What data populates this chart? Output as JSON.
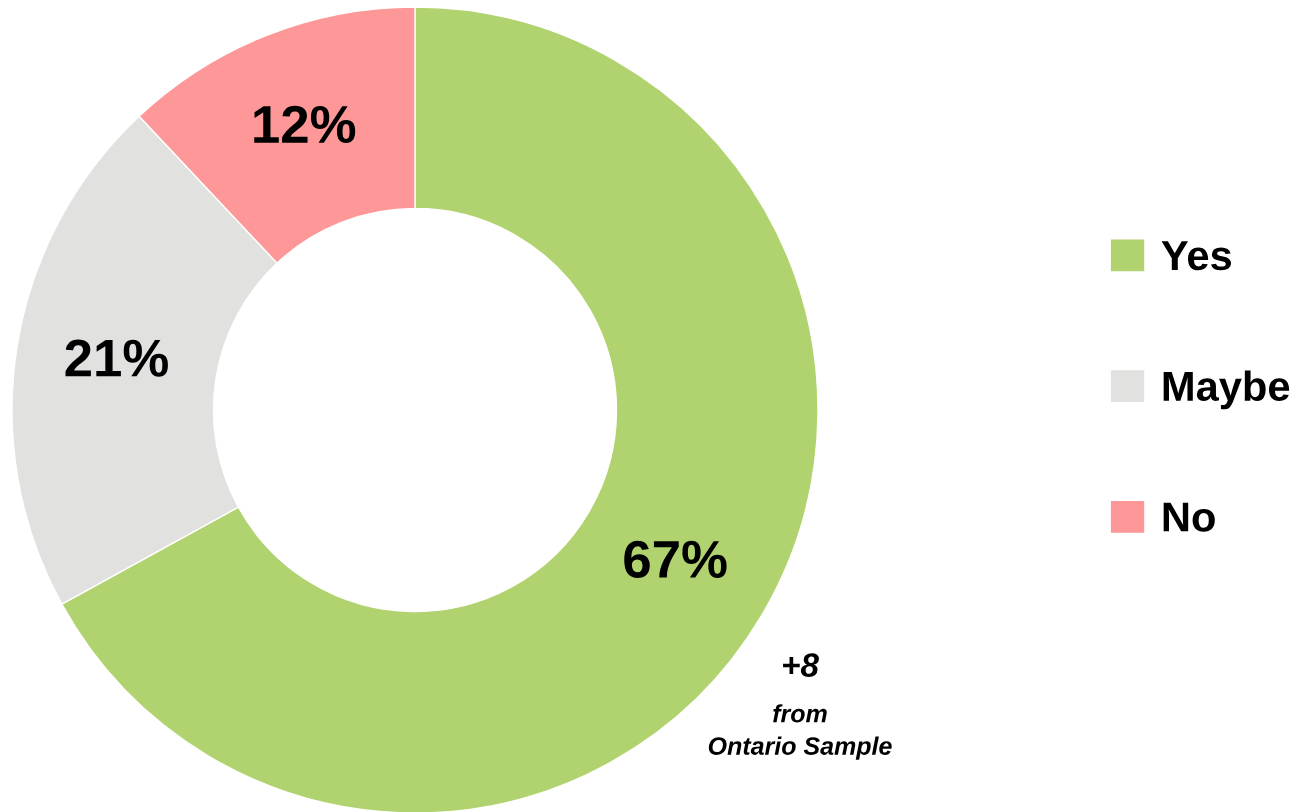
{
  "chart_data": {
    "type": "donut",
    "categories": [
      "Yes",
      "Maybe",
      "No"
    ],
    "values": [
      67,
      21,
      12
    ],
    "colors": [
      "#b1d36f",
      "#e1e2df",
      "#fe9797"
    ],
    "value_labels": [
      "67%",
      "21%",
      "12%"
    ],
    "legend": "right",
    "annotations": [
      "+8",
      "from\nOntario Sample"
    ]
  }
}
